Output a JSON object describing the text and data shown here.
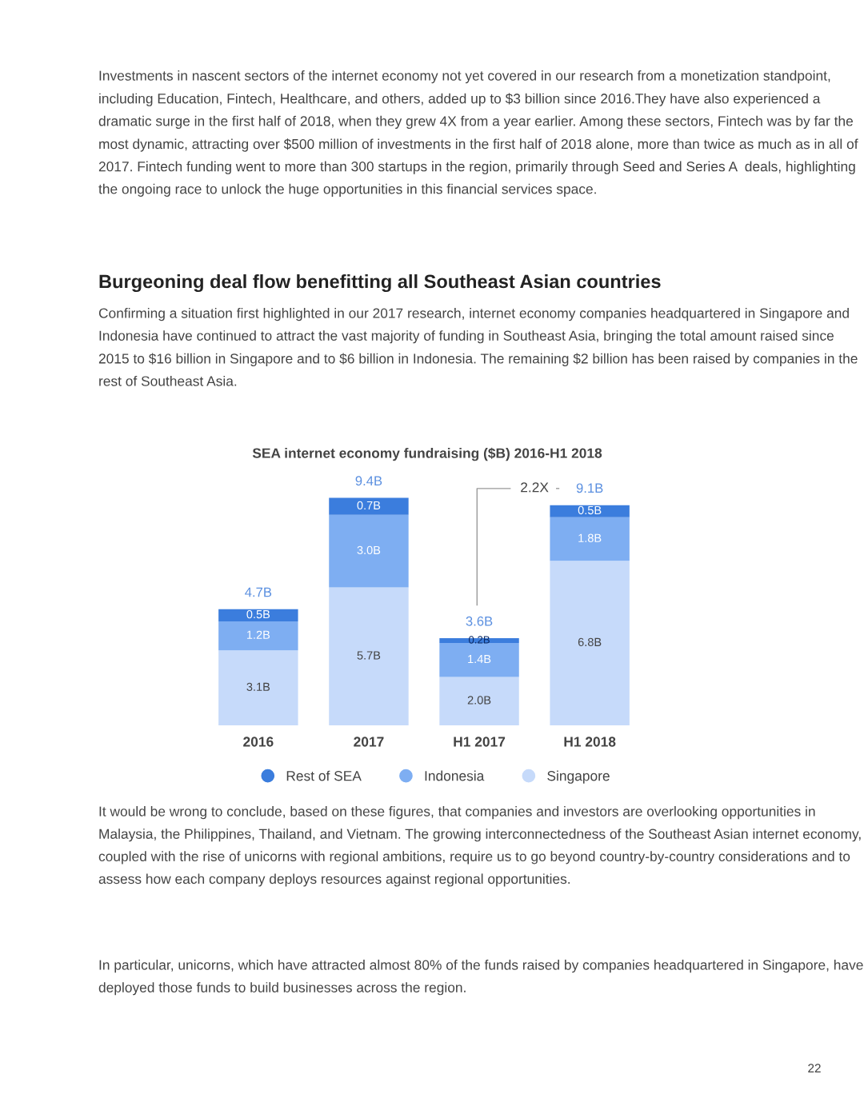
{
  "chart_data": {
    "type": "bar",
    "stacked": true,
    "title": "SEA internet economy fundraising ($B) 2016-H1 2018",
    "categories": [
      "2016",
      "2017",
      "H1 2017",
      "H1 2018"
    ],
    "series": [
      {
        "name": "Singapore",
        "color": "#c6dafa",
        "values": [
          3.1,
          5.7,
          2.0,
          6.8
        ],
        "value_labels": [
          "3.1B",
          "5.7B",
          "2.0B",
          "6.8B"
        ]
      },
      {
        "name": "Indonesia",
        "color": "#7eaef2",
        "values": [
          1.2,
          3.0,
          1.4,
          1.8
        ],
        "value_labels": [
          "1.2B",
          "3.0B",
          "1.4B",
          "1.8B"
        ]
      },
      {
        "name": "Rest of SEA",
        "color": "#3b7ddd",
        "values": [
          0.5,
          0.7,
          0.2,
          0.5
        ],
        "value_labels": [
          "0.5B",
          "0.7B",
          "0.2B",
          "0.5B"
        ]
      }
    ],
    "totals": [
      "4.7B",
      "9.4B",
      "3.6B",
      "9.1B"
    ],
    "legend": "bottom",
    "marker": "circle",
    "grid": false,
    "annotations": [
      "Investments in nascent sectors of the internet economy not yet covered in our research from a monetization standpoint, including Education, Fintech, Healthcare, and others, added up to $3 billion since 2016.They have also experienced a dramatic surge in the first half of 2018, when they grew 4X from a year earlier. Among these sectors, Fintech was by far the most dynamic, attracting over $500 million of investments in the first half of 2018 alone, more than twice as much as in all of 2017. Fintech funding went to more than 300 startups in the region, primarily through Seed and Series A  deals, highlighting the ongoing race to unlock the huge opportunities in this financial services space.",
      "Burgeoning deal flow benefitting all Southeast Asian countries",
      "Confirming a situation first highlighted in our 2017 research, internet economy companies headquartered in Singapore and Indonesia have continued to attract the vast majority of funding in Southeast Asia, bringing the total amount raised since 2015 to $16 billion in Singapore and to $6 billion in Indonesia. The remaining $2 billion has been raised by companies in the rest of Southeast Asia.",
      "2.2X",
      "It would be wrong to conclude, based on these figures, that companies and investors are overlooking opportunities in Malaysia, the Philippines, Thailand, and Vietnam. The growing interconnectedness of the Southeast Asian internet economy, coupled with the rise of unicorns with regional ambitions, require us to go beyond country-by-country considerations and to assess how each company deploys resources against regional opportunities.",
      "In particular, unicorns, which have attracted almost 80% of the funds raised by companies headquartered in Singapore, have deployed those funds to build businesses across the region.",
      "22"
    ]
  }
}
